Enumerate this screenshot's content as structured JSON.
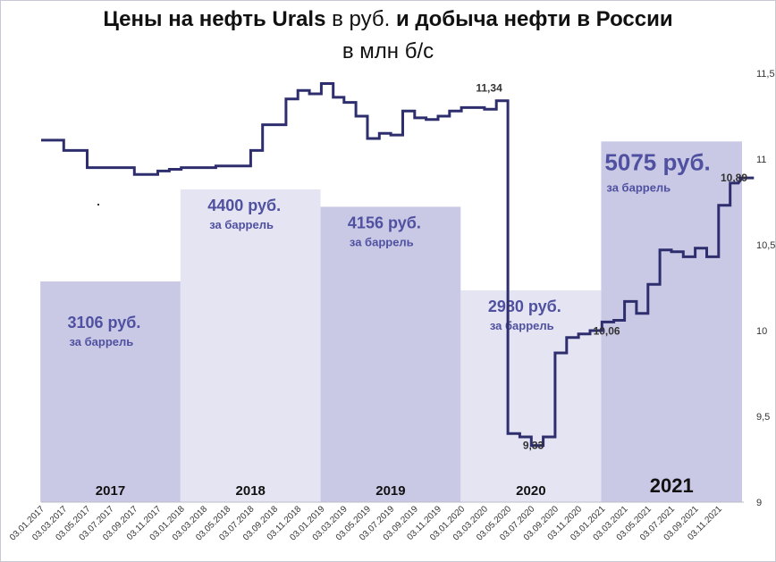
{
  "chart_data": {
    "type": "bar+line",
    "title_parts": [
      "Цены на нефть Urals",
      " в руб. ",
      "и добыча нефти в России"
    ],
    "subtitle": "в млн б/с",
    "colors": {
      "line": "#2e2e6e",
      "bar_dark": "#c9c9e6",
      "bar_light": "#e4e4f3",
      "price_label": "#5050a0",
      "year_label": "#111111"
    },
    "price_bars": [
      {
        "year": "2017",
        "value": 3106,
        "label": "3106 руб.",
        "sublabel": "за баррель"
      },
      {
        "year": "2018",
        "value": 4400,
        "label": "4400 руб.",
        "sublabel": "за баррель"
      },
      {
        "year": "2019",
        "value": 4156,
        "label": "4156 руб.",
        "sublabel": "за баррель"
      },
      {
        "year": "2020",
        "value": 2980,
        "label": "2980 руб.",
        "sublabel": "за баррель"
      },
      {
        "year": "2021",
        "value": 5075,
        "label": "5075 руб.",
        "sublabel": "за баррель"
      }
    ],
    "y_right": {
      "min": 9,
      "max": 11.5,
      "ticks": [
        "9",
        "9,5",
        "10",
        "10,5",
        "11",
        "11,5"
      ]
    },
    "x_ticks": [
      "03.01.2017",
      "03.03.2017",
      "03.05.2017",
      "03.07.2017",
      "03.09.2017",
      "03.11.2017",
      "03.01.2018",
      "03.03.2018",
      "03.05.2018",
      "03.07.2018",
      "03.09.2018",
      "03.11.2018",
      "03.01.2019",
      "03.03.2019",
      "03.05.2019",
      "03.07.2019",
      "03.09.2019",
      "03.11.2019",
      "03.01.2020",
      "03.03.2020",
      "03.05.2020",
      "03.07.2020",
      "03.09.2020",
      "03.11.2020",
      "03.01.2021",
      "03.03.2021",
      "03.05.2021",
      "03.07.2021",
      "03.09.2021",
      "03.11.2021"
    ],
    "production_series": {
      "name": "добыча нефти",
      "start": "2017-01-03",
      "end": "2021-12-20",
      "monthly_values": [
        11.11,
        11.11,
        11.05,
        11.05,
        10.95,
        10.95,
        10.95,
        10.95,
        10.91,
        10.91,
        10.93,
        10.94,
        10.95,
        10.95,
        10.95,
        10.96,
        10.96,
        10.96,
        11.05,
        11.2,
        11.2,
        11.35,
        11.4,
        11.38,
        11.44,
        11.36,
        11.33,
        11.25,
        11.12,
        11.15,
        11.14,
        11.28,
        11.24,
        11.23,
        11.25,
        11.28,
        11.3,
        11.3,
        11.29,
        11.34,
        9.4,
        9.38,
        9.33,
        9.38,
        9.87,
        9.96,
        9.98,
        10.0,
        10.05,
        10.06,
        10.17,
        10.1,
        10.27,
        10.47,
        10.46,
        10.43,
        10.48,
        10.43,
        10.73,
        10.86,
        10.89,
        10.89
      ]
    },
    "annotations": [
      {
        "text": "11,34",
        "date": "2020-03-15",
        "value": 11.34
      },
      {
        "text": "9,33",
        "date": "2020-06-15",
        "value": 9.33
      },
      {
        "text": "10,06",
        "date": "2021-01-20",
        "value": 10.06
      },
      {
        "text": "10,89",
        "date": "2021-12-20",
        "value": 10.89
      }
    ]
  }
}
